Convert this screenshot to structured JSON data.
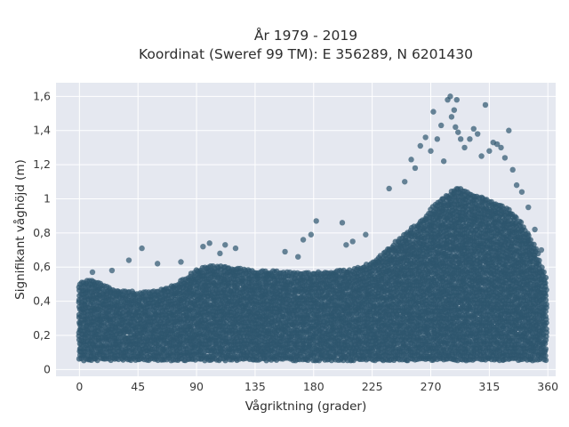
{
  "chart_data": {
    "type": "scatter",
    "title": "År 1979 - 2019",
    "subtitle": "Koordinat (Sweref 99 TM): E 356289, N 6201430",
    "xlabel": "Vågriktning (grader)",
    "ylabel": "Signifikant våghöjd (m)",
    "xlim": [
      -18,
      366
    ],
    "ylim": [
      -0.04,
      1.68
    ],
    "xticks": [
      0,
      45,
      90,
      135,
      180,
      225,
      270,
      315,
      360
    ],
    "xtick_labels": [
      "0",
      "45",
      "90",
      "135",
      "180",
      "225",
      "270",
      "315",
      "360"
    ],
    "yticks": [
      0,
      0.2,
      0.4,
      0.6,
      0.8,
      1.0,
      1.2,
      1.4,
      1.6
    ],
    "ytick_labels": [
      "0",
      "0,2",
      "0,4",
      "0,6",
      "0,8",
      "1",
      "1,2",
      "1,4",
      "1,6"
    ],
    "grid": true,
    "background": "#e5e8f0",
    "marker_color": "#2e566e",
    "envelope": {
      "x": [
        0,
        10,
        20,
        30,
        40,
        45,
        55,
        65,
        75,
        85,
        90,
        100,
        110,
        120,
        135,
        150,
        165,
        180,
        195,
        210,
        225,
        240,
        255,
        265,
        270,
        275,
        280,
        285,
        290,
        295,
        300,
        310,
        320,
        330,
        340,
        350,
        355,
        360
      ],
      "y_min": [
        0.06,
        0.06,
        0.06,
        0.06,
        0.06,
        0.06,
        0.06,
        0.06,
        0.06,
        0.06,
        0.06,
        0.06,
        0.06,
        0.06,
        0.06,
        0.06,
        0.06,
        0.06,
        0.06,
        0.06,
        0.06,
        0.06,
        0.06,
        0.06,
        0.06,
        0.06,
        0.06,
        0.06,
        0.06,
        0.06,
        0.06,
        0.06,
        0.06,
        0.06,
        0.06,
        0.06,
        0.06,
        0.06
      ],
      "y_max": [
        0.5,
        0.52,
        0.48,
        0.46,
        0.45,
        0.44,
        0.45,
        0.47,
        0.5,
        0.55,
        0.58,
        0.6,
        0.6,
        0.59,
        0.57,
        0.57,
        0.56,
        0.56,
        0.57,
        0.58,
        0.62,
        0.72,
        0.82,
        0.88,
        0.93,
        0.98,
        1.0,
        1.03,
        1.06,
        1.05,
        1.02,
        1.0,
        0.97,
        0.93,
        0.85,
        0.72,
        0.6,
        0.5
      ]
    },
    "outliers": [
      {
        "x": 10,
        "y": 0.57
      },
      {
        "x": 25,
        "y": 0.58
      },
      {
        "x": 38,
        "y": 0.64
      },
      {
        "x": 48,
        "y": 0.71
      },
      {
        "x": 60,
        "y": 0.62
      },
      {
        "x": 78,
        "y": 0.63
      },
      {
        "x": 95,
        "y": 0.72
      },
      {
        "x": 100,
        "y": 0.74
      },
      {
        "x": 108,
        "y": 0.68
      },
      {
        "x": 112,
        "y": 0.73
      },
      {
        "x": 120,
        "y": 0.71
      },
      {
        "x": 158,
        "y": 0.69
      },
      {
        "x": 168,
        "y": 0.66
      },
      {
        "x": 172,
        "y": 0.76
      },
      {
        "x": 178,
        "y": 0.79
      },
      {
        "x": 182,
        "y": 0.87
      },
      {
        "x": 202,
        "y": 0.86
      },
      {
        "x": 205,
        "y": 0.73
      },
      {
        "x": 210,
        "y": 0.75
      },
      {
        "x": 220,
        "y": 0.79
      },
      {
        "x": 238,
        "y": 1.06
      },
      {
        "x": 250,
        "y": 1.1
      },
      {
        "x": 255,
        "y": 1.23
      },
      {
        "x": 258,
        "y": 1.18
      },
      {
        "x": 262,
        "y": 1.31
      },
      {
        "x": 266,
        "y": 1.36
      },
      {
        "x": 270,
        "y": 1.28
      },
      {
        "x": 272,
        "y": 1.51
      },
      {
        "x": 275,
        "y": 1.35
      },
      {
        "x": 278,
        "y": 1.43
      },
      {
        "x": 280,
        "y": 1.22
      },
      {
        "x": 283,
        "y": 1.58
      },
      {
        "x": 285,
        "y": 1.6
      },
      {
        "x": 286,
        "y": 1.48
      },
      {
        "x": 288,
        "y": 1.52
      },
      {
        "x": 289,
        "y": 1.42
      },
      {
        "x": 290,
        "y": 1.58
      },
      {
        "x": 291,
        "y": 1.39
      },
      {
        "x": 293,
        "y": 1.35
      },
      {
        "x": 296,
        "y": 1.3
      },
      {
        "x": 300,
        "y": 1.35
      },
      {
        "x": 303,
        "y": 1.41
      },
      {
        "x": 306,
        "y": 1.38
      },
      {
        "x": 309,
        "y": 1.25
      },
      {
        "x": 312,
        "y": 1.55
      },
      {
        "x": 315,
        "y": 1.28
      },
      {
        "x": 318,
        "y": 1.33
      },
      {
        "x": 321,
        "y": 1.32
      },
      {
        "x": 324,
        "y": 1.3
      },
      {
        "x": 327,
        "y": 1.24
      },
      {
        "x": 330,
        "y": 1.4
      },
      {
        "x": 333,
        "y": 1.17
      },
      {
        "x": 336,
        "y": 1.08
      },
      {
        "x": 340,
        "y": 1.04
      },
      {
        "x": 345,
        "y": 0.95
      },
      {
        "x": 350,
        "y": 0.82
      },
      {
        "x": 355,
        "y": 0.7
      }
    ]
  }
}
